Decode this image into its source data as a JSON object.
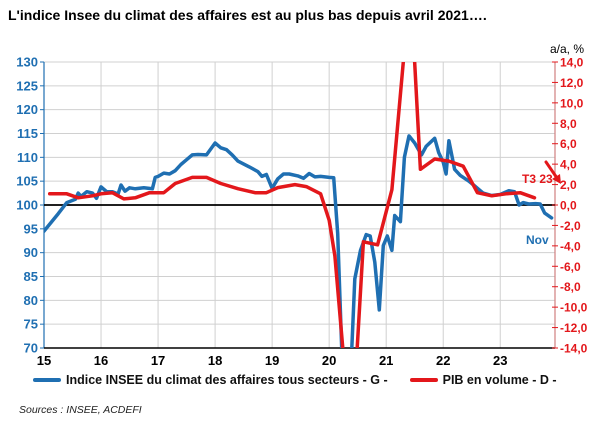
{
  "title": "L'indice Insee du climat des affaires est au plus bas depuis avril 2021….",
  "sources": "Sources : INSEE, ACDEFI",
  "colors": {
    "blue": "#1f6fb2",
    "red": "#e3171b",
    "grid": "#d0d0d0",
    "zero": "#000000"
  },
  "chart_data": {
    "type": "line",
    "title": "L'indice Insee du climat des affaires est au plus bas depuis avril 2021….",
    "x_ticks": [
      "15",
      "16",
      "17",
      "18",
      "19",
      "20",
      "21",
      "22",
      "23"
    ],
    "xlim": [
      15,
      23.96
    ],
    "left_axis": {
      "ylim": [
        70,
        130
      ],
      "ticks": [
        "70",
        "75",
        "80",
        "85",
        "90",
        "95",
        "100",
        "105",
        "110",
        "115",
        "120",
        "125",
        "130"
      ]
    },
    "right_axis": {
      "label": "a/a, %",
      "ylim": [
        -14,
        14
      ],
      "ticks": [
        "-14,0",
        "-12,0",
        "-10,0",
        "-8,0",
        "-6,0",
        "-4,0",
        "-2,0",
        "0,0",
        "2,0",
        "4,0",
        "6,0",
        "8,0",
        "10,0",
        "12,0",
        "14,0"
      ]
    },
    "annotations": {
      "t3": "T3 23",
      "nov": "Nov"
    },
    "series": [
      {
        "name": "Indice INSEE du climat des affaires tous secteurs - G -",
        "axis": "left",
        "x": [
          15.0,
          15.25,
          15.4,
          15.55,
          15.6,
          15.65,
          15.75,
          15.85,
          15.92,
          16.0,
          16.1,
          16.2,
          16.3,
          16.35,
          16.42,
          16.5,
          16.6,
          16.75,
          16.9,
          16.95,
          17.0,
          17.1,
          17.2,
          17.3,
          17.4,
          17.5,
          17.6,
          17.7,
          17.85,
          18.0,
          18.1,
          18.2,
          18.3,
          18.4,
          18.6,
          18.75,
          18.82,
          18.9,
          19.0,
          19.1,
          19.2,
          19.3,
          19.45,
          19.55,
          19.65,
          19.75,
          19.85,
          20.0,
          20.08,
          20.15,
          20.22,
          20.3,
          20.38,
          20.45,
          20.55,
          20.65,
          20.72,
          20.8,
          20.88,
          20.95,
          21.02,
          21.1,
          21.15,
          21.25,
          21.32,
          21.4,
          21.5,
          21.62,
          21.7,
          21.85,
          21.92,
          22.0,
          22.05,
          22.1,
          22.2,
          22.3,
          22.45,
          22.55,
          22.7,
          22.85,
          23.0,
          23.15,
          23.25,
          23.33,
          23.4,
          23.5,
          23.62,
          23.7,
          23.78,
          23.9
        ],
        "values": [
          94.5,
          98.2,
          100.5,
          101.2,
          102.5,
          101.8,
          102.8,
          102.5,
          101.4,
          103.8,
          102.8,
          102.8,
          102.3,
          104.2,
          102.9,
          103.6,
          103.4,
          103.6,
          103.4,
          105.8,
          106.0,
          106.7,
          106.5,
          107.2,
          108.5,
          109.5,
          110.5,
          110.6,
          110.5,
          113.0,
          112.0,
          111.6,
          110.5,
          109.2,
          108.0,
          107.0,
          106.0,
          106.4,
          103.5,
          105.5,
          106.5,
          106.5,
          106.1,
          105.6,
          106.6,
          105.9,
          106.0,
          105.8,
          105.7,
          94.0,
          70.0,
          65.0,
          65.0,
          84.5,
          90.5,
          93.8,
          93.5,
          88.0,
          78.0,
          91.5,
          93.5,
          90.5,
          97.8,
          96.5,
          110.0,
          114.5,
          113.0,
          110.5,
          112.3,
          114.0,
          111.0,
          109.0,
          106.5,
          113.5,
          107.5,
          106.2,
          105.0,
          104.0,
          102.5,
          102.0,
          102.2,
          103.0,
          102.8,
          100.0,
          100.5,
          100.2,
          100.3,
          100.2,
          98.3,
          97.3
        ]
      },
      {
        "name": "PIB en volume - D -",
        "axis": "right",
        "x": [
          15.1,
          15.4,
          15.6,
          15.85,
          16.0,
          16.2,
          16.4,
          16.6,
          16.85,
          17.1,
          17.3,
          17.6,
          17.85,
          18.1,
          18.4,
          18.7,
          18.9,
          19.1,
          19.4,
          19.6,
          19.85,
          20.0,
          20.1,
          20.3,
          20.45,
          20.6,
          20.85,
          21.1,
          21.3,
          21.45,
          21.6,
          21.85,
          22.1,
          22.35,
          22.6,
          22.85,
          23.1,
          23.35,
          23.6
        ],
        "values": [
          1.1,
          1.1,
          0.7,
          0.9,
          1.1,
          1.2,
          0.6,
          0.7,
          1.2,
          1.2,
          2.1,
          2.7,
          2.7,
          2.1,
          1.6,
          1.2,
          1.2,
          1.7,
          2.0,
          1.8,
          1.1,
          -1.5,
          -5.0,
          -18.0,
          -18.0,
          -3.6,
          -3.9,
          1.5,
          14.0,
          19.0,
          3.5,
          4.5,
          4.3,
          3.8,
          1.2,
          0.9,
          1.1,
          1.2,
          0.7
        ]
      }
    ],
    "legend": "bottom"
  }
}
